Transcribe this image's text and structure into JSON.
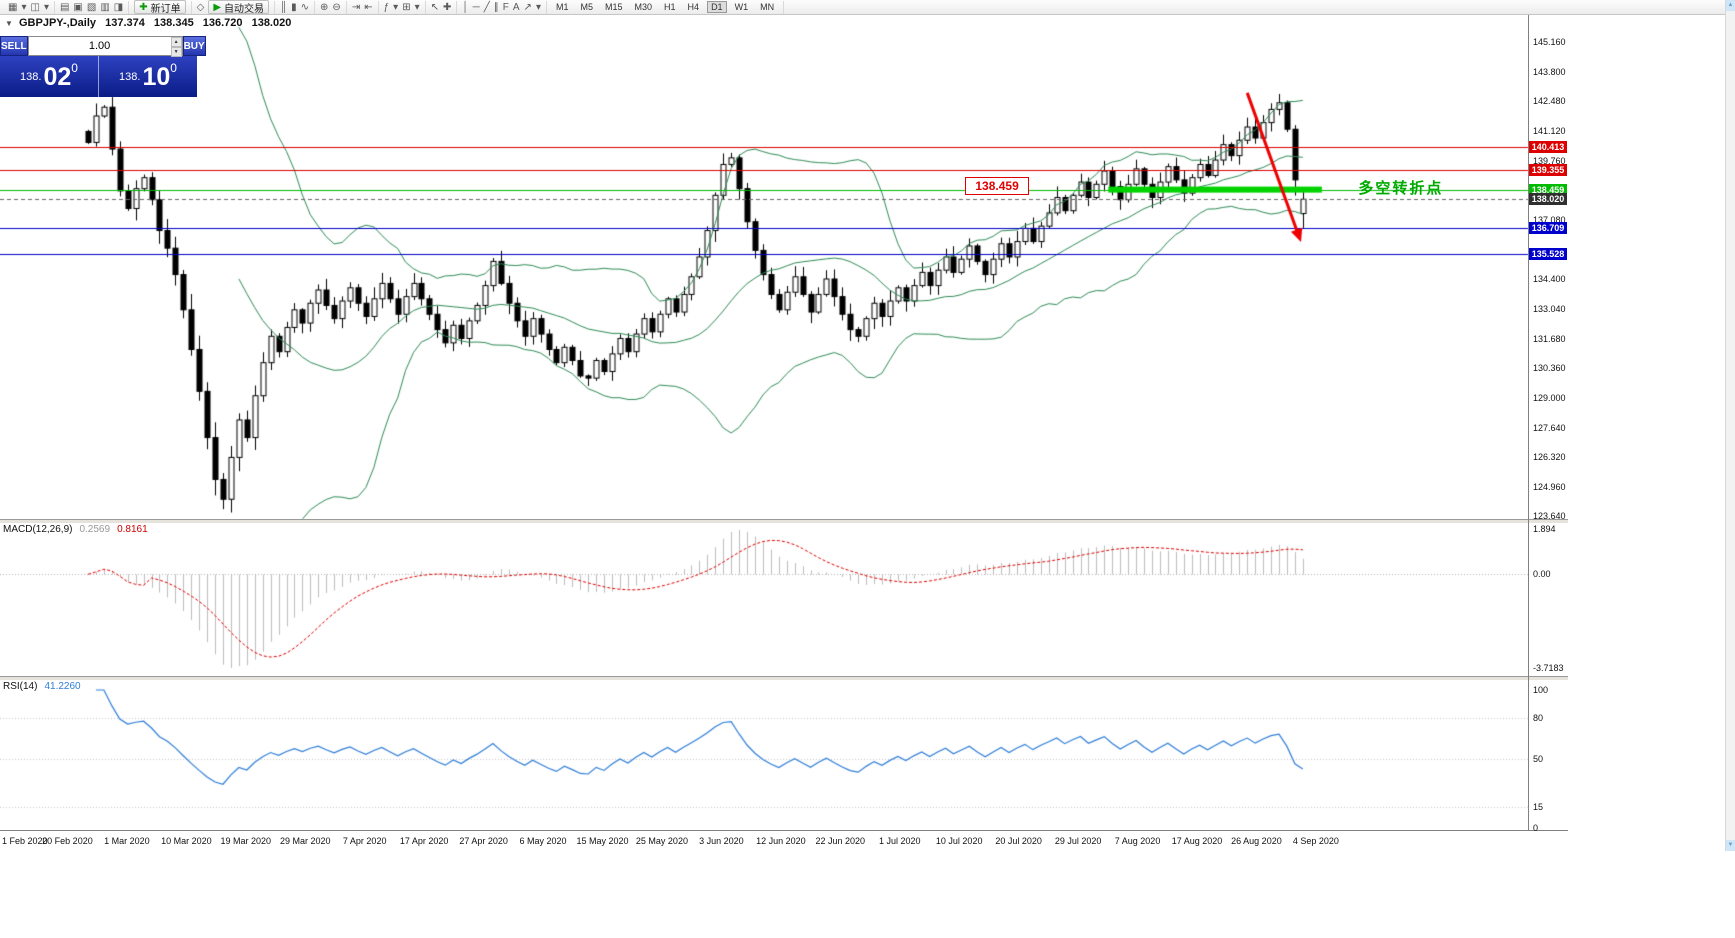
{
  "toolbar": {
    "groups": [
      [
        {
          "name": "new-chart-icon",
          "glyph": "▦"
        },
        {
          "name": "chart-dropdown-icon",
          "glyph": "▾"
        },
        {
          "name": "profiles-icon",
          "glyph": "◫"
        },
        {
          "name": "profiles-dropdown-icon",
          "glyph": "▾"
        }
      ],
      [
        {
          "name": "market-watch-icon",
          "glyph": "▤"
        },
        {
          "name": "data-window-icon",
          "glyph": "▣"
        },
        {
          "name": "navigator-icon",
          "glyph": "▧"
        },
        {
          "name": "terminal-icon",
          "glyph": "▥"
        },
        {
          "name": "strategy-tester-icon",
          "glyph": "◨"
        }
      ],
      [
        {
          "name": "new-order-button",
          "glyph": "✚",
          "label": "新订单",
          "accent": "#0a9a0a"
        }
      ],
      [
        {
          "name": "metaeditor-icon",
          "glyph": "◇"
        },
        {
          "name": "autotrading-button",
          "glyph": "▶",
          "label": "自动交易",
          "accent": "#0a9a0a"
        }
      ],
      [
        {
          "name": "chart-bars-icon",
          "glyph": "║"
        },
        {
          "name": "chart-candles-icon",
          "glyph": "▮"
        },
        {
          "name": "chart-line-icon",
          "glyph": "∿"
        }
      ],
      [
        {
          "name": "zoom-in-icon",
          "glyph": "⊕"
        },
        {
          "name": "zoom-out-icon",
          "glyph": "⊖"
        }
      ],
      [
        {
          "name": "auto-scroll-icon",
          "glyph": "⇥"
        },
        {
          "name": "chart-shift-icon",
          "glyph": "⇤"
        }
      ],
      [
        {
          "name": "indicators-icon",
          "glyph": "ƒ"
        },
        {
          "name": "indicators-dropdown-icon",
          "glyph": "▾"
        },
        {
          "name": "templates-icon",
          "glyph": "⊞"
        },
        {
          "name": "templates-dropdown-icon",
          "glyph": "▾"
        }
      ],
      [
        {
          "name": "cursor-icon",
          "glyph": "↖"
        },
        {
          "name": "crosshair-icon",
          "glyph": "✚"
        }
      ],
      [
        {
          "name": "vertical-line-icon",
          "glyph": "│"
        },
        {
          "name": "horizontal-line-icon",
          "glyph": "─"
        },
        {
          "name": "trendline-icon",
          "glyph": "╱"
        },
        {
          "name": "channel-icon",
          "glyph": "∥"
        },
        {
          "name": "fibonacci-icon",
          "glyph": "F"
        },
        {
          "name": "text-icon",
          "glyph": "A"
        },
        {
          "name": "arrows-icon",
          "glyph": "↗"
        },
        {
          "name": "shapes-dropdown-icon",
          "glyph": "▾"
        }
      ]
    ],
    "timeframes": {
      "items": [
        "M1",
        "M5",
        "M15",
        "M30",
        "H1",
        "H4",
        "D1",
        "W1",
        "MN"
      ],
      "active": "D1"
    }
  },
  "chart_header": {
    "marker": "▼",
    "symbol": "GBPJPY-,Daily",
    "open": "137.374",
    "high": "138.345",
    "low": "136.720",
    "close": "138.020"
  },
  "trade_panel": {
    "sell_label": "SELL",
    "buy_label": "BUY",
    "volume": "1.00",
    "sell_price": {
      "prefix": "138.",
      "big": "02",
      "sup": "0"
    },
    "buy_price": {
      "prefix": "138.",
      "big": "10",
      "sup": "0"
    }
  },
  "indicators": {
    "macd": {
      "name": "MACD(12,26,9)",
      "value_main": "0.2569",
      "value_signal": "0.8161",
      "axis_max": "1.894",
      "axis_zero": "0.00",
      "axis_min": "-3.7183",
      "fast": 12,
      "slow": 26,
      "signal": 9,
      "hist_color": "#bdbdbd",
      "signal_color": "#e00000"
    },
    "rsi": {
      "name": "RSI(14)",
      "value": "41.2260",
      "period": 14,
      "color": "#2f7ed8",
      "axis": [
        {
          "label": "100",
          "value": 100,
          "line": false
        },
        {
          "label": "80",
          "value": 80,
          "line": true
        },
        {
          "label": "50",
          "value": 50,
          "line": true
        },
        {
          "label": "15",
          "value": 15,
          "line": true
        },
        {
          "label": "0",
          "value": 0,
          "line": false
        }
      ]
    }
  },
  "annotations": {
    "callout": {
      "text": "138.459",
      "i": 110.5,
      "price": 138.55
    },
    "note": {
      "text": "多空转折点",
      "i": 160,
      "price": 138.55,
      "color": "#00aa00"
    },
    "segment": {
      "i1": 128.5,
      "i2": 155.4,
      "price": 138.459,
      "color": "#00d300",
      "thickness": 6
    },
    "arrow": {
      "i1": 146,
      "p1": 142.85,
      "i2": 152.3,
      "p2": 136.55,
      "color": "#ee0000",
      "width": 3
    }
  },
  "chart_data": {
    "type": "candlestick",
    "title": "GBPJPY- Daily",
    "y_range": [
      123.64,
      145.16
    ],
    "price_ticks": [
      "145.160",
      "143.800",
      "142.480",
      "141.120",
      "139.760",
      "137.080",
      "134.400",
      "133.040",
      "131.680",
      "130.360",
      "129.000",
      "127.640",
      "126.320",
      "124.960",
      "123.640"
    ],
    "closes": [
      140.6,
      141.8,
      142.2,
      140.3,
      138.4,
      137.6,
      138.5,
      139.0,
      138.0,
      136.6,
      135.8,
      134.6,
      133.0,
      131.2,
      129.3,
      127.2,
      125.3,
      124.4,
      126.3,
      128.0,
      127.2,
      129.1,
      130.6,
      131.8,
      131.1,
      132.2,
      133.0,
      132.4,
      133.3,
      133.9,
      133.2,
      132.6,
      133.4,
      134.0,
      133.3,
      132.7,
      133.5,
      134.2,
      133.5,
      132.8,
      133.6,
      134.2,
      133.5,
      132.8,
      132.1,
      131.5,
      132.3,
      131.7,
      132.5,
      133.2,
      134.1,
      135.2,
      134.2,
      133.3,
      132.5,
      131.8,
      132.6,
      131.9,
      131.2,
      130.6,
      131.3,
      130.7,
      130.0,
      129.9,
      130.7,
      130.2,
      131.0,
      131.7,
      131.1,
      131.9,
      132.6,
      132.0,
      132.8,
      133.5,
      132.9,
      133.7,
      134.5,
      135.4,
      136.6,
      138.2,
      139.6,
      139.9,
      138.5,
      137.0,
      135.7,
      134.6,
      133.7,
      133.0,
      133.8,
      134.5,
      133.7,
      132.9,
      133.7,
      134.4,
      133.6,
      132.8,
      132.1,
      131.8,
      132.6,
      133.3,
      132.7,
      133.4,
      134.0,
      133.4,
      134.1,
      134.7,
      134.1,
      134.8,
      135.4,
      134.7,
      135.3,
      135.9,
      135.2,
      134.6,
      135.3,
      136.0,
      135.4,
      136.1,
      136.7,
      136.1,
      136.8,
      137.4,
      138.1,
      137.5,
      138.2,
      138.8,
      138.1,
      138.7,
      139.3,
      138.6,
      138.0,
      138.7,
      139.4,
      138.7,
      138.1,
      138.8,
      139.5,
      138.9,
      138.3,
      139.0,
      139.6,
      139.1,
      139.8,
      140.5,
      140.0,
      140.7,
      141.3,
      140.8,
      141.5,
      142.1,
      142.4,
      141.2,
      138.9,
      138.02
    ],
    "last_candle": {
      "open": 137.374,
      "high": 138.345,
      "low": 136.72,
      "close": 138.02
    },
    "extremes": {
      "low": {
        "index": 17,
        "price": 123.95
      },
      "high": {
        "index": 150,
        "price": 142.72
      }
    },
    "x_labels": [
      "1 Feb 2020",
      "20 Feb 2020",
      "1 Mar 2020",
      "10 Mar 2020",
      "19 Mar 2020",
      "29 Mar 2020",
      "7 Apr 2020",
      "17 Apr 2020",
      "27 Apr 2020",
      "6 May 2020",
      "15 May 2020",
      "25 May 2020",
      "3 Jun 2020",
      "12 Jun 2020",
      "22 Jun 2020",
      "1 Jul 2020",
      "10 Jul 2020",
      "20 Jul 2020",
      "29 Jul 2020",
      "7 Aug 2020",
      "17 Aug 2020",
      "26 Aug 2020",
      "4 Sep 2020"
    ],
    "bollinger": {
      "period": 20,
      "deviation": 2,
      "color": "#2e8b57"
    },
    "hlines": [
      {
        "price": 140.413,
        "color": "#dd0000",
        "label": "140.413"
      },
      {
        "price": 139.355,
        "color": "#dd0000",
        "label": "139.355"
      },
      {
        "price": 138.459,
        "color": "#00bb00",
        "label": "138.459"
      },
      {
        "price": 136.709,
        "color": "#0000cc",
        "label": "136.709"
      },
      {
        "price": 135.528,
        "color": "#0000cc",
        "label": "135.528"
      }
    ],
    "current_price": {
      "price": 138.02,
      "label": "138.020",
      "line_color": "#666666",
      "badge_bg": "#2f2f2f"
    },
    "colors": {
      "bull": "#ffffff",
      "bear": "#000000",
      "wick": "#000000"
    }
  }
}
